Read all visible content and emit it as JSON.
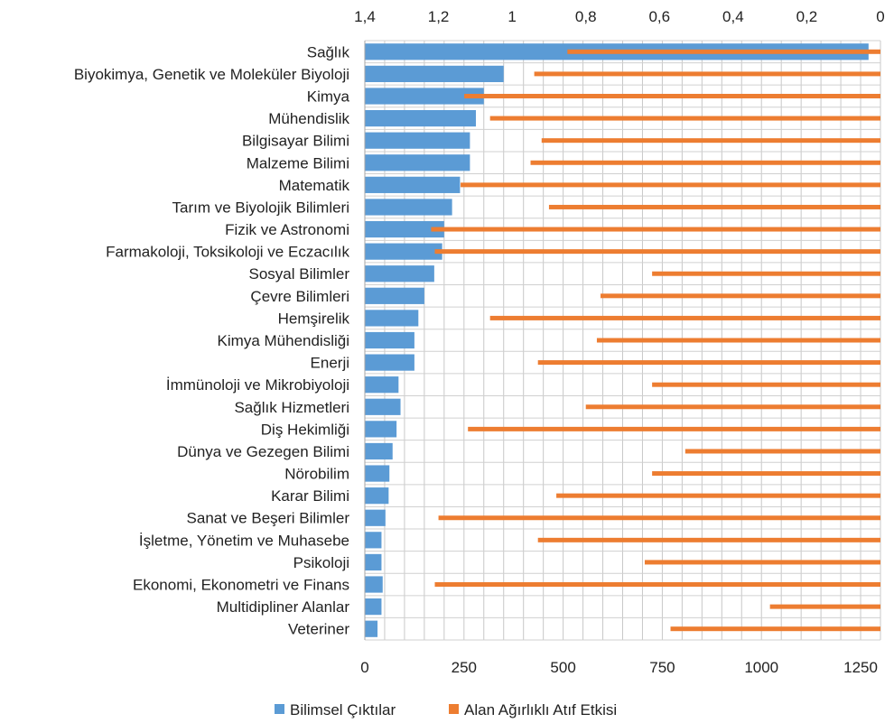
{
  "chart_data": {
    "type": "bar",
    "categories": [
      "Sağlık",
      "Biyokimya, Genetik ve Moleküler Biyoloji",
      "Kimya",
      "Mühendislik",
      "Bilgisayar Bilimi",
      "Malzeme Bilimi",
      "Matematik",
      "Tarım ve Biyolojik Bilimleri",
      "Fizik ve Astronomi",
      "Farmakoloji, Toksikoloji ve Eczacılık",
      "Sosyal Bilimler",
      "Çevre Bilimleri",
      "Hemşirelik",
      "Kimya Mühendisliği",
      "Enerji",
      "İmmünoloji ve Mikrobiyoloji",
      "Sağlık Hizmetleri",
      "Diş Hekimliği",
      "Dünya ve Gezegen Bilimi",
      "Nörobilim",
      "Karar Bilimi",
      "Sanat ve Beşeri Bilimler",
      "İşletme, Yönetim ve Muhasebe",
      "Psikoloji",
      "Ekonomi, Ekonometri ve Finans",
      "Multidipliner Alanlar",
      "Veteriner"
    ],
    "series": [
      {
        "name": "Bilimsel Çıktılar",
        "axis": "bottom",
        "color": "#5B9BD5",
        "values": [
          1270,
          350,
          300,
          280,
          265,
          265,
          240,
          220,
          200,
          195,
          175,
          150,
          135,
          125,
          125,
          85,
          90,
          80,
          70,
          62,
          60,
          52,
          42,
          42,
          45,
          42,
          32
        ]
      },
      {
        "name": "Alan Ağırlıklı Atıf Etkisi",
        "axis": "top",
        "color": "#ED7D31",
        "values": [
          0.85,
          0.94,
          1.13,
          1.06,
          0.92,
          0.95,
          1.14,
          0.9,
          1.22,
          1.21,
          0.62,
          0.76,
          1.06,
          0.77,
          0.93,
          0.62,
          0.8,
          1.12,
          0.53,
          0.62,
          0.88,
          1.2,
          0.93,
          0.64,
          1.21,
          0.3,
          0.57
        ]
      }
    ],
    "x_bottom": {
      "ticks": [
        "0",
        "250",
        "500",
        "750",
        "1000",
        "1250"
      ],
      "lim": [
        0,
        1300
      ]
    },
    "x_top": {
      "ticks": [
        "1,4",
        "1,2",
        "1",
        "0,8",
        "0,6",
        "0,4",
        "0,2",
        "0"
      ],
      "lim": [
        1.4,
        0
      ],
      "reversed": true
    },
    "title": "",
    "xlabel": "",
    "ylabel": "",
    "grid": true,
    "legend": "bottom"
  }
}
